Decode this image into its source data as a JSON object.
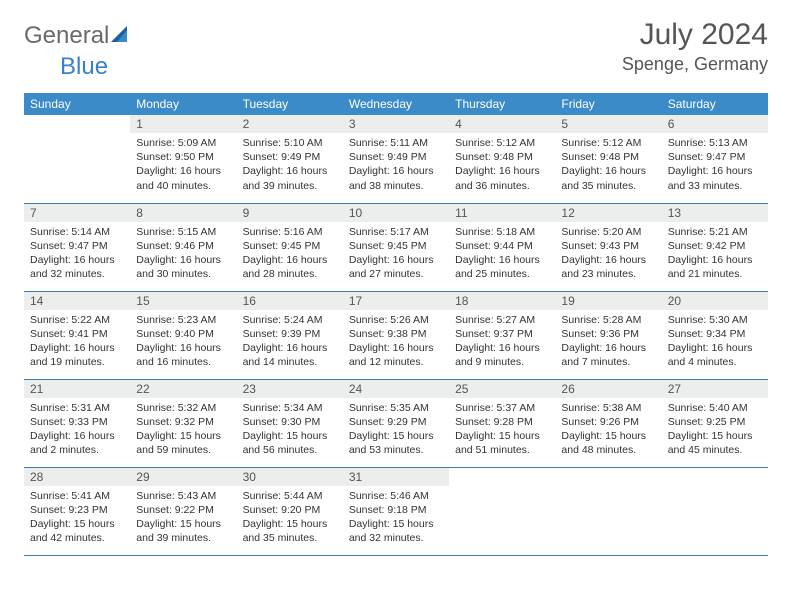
{
  "brand": {
    "part1": "General",
    "part2": "Blue"
  },
  "title": "July 2024",
  "location": "Spenge, Germany",
  "colors": {
    "header_bg": "#3b8bc9",
    "header_text": "#ffffff",
    "daynum_bg": "#eceded",
    "border": "#3b7fa5",
    "logo_gray": "#6a6a6a",
    "logo_blue": "#3b7fc4"
  },
  "weekdays": [
    "Sunday",
    "Monday",
    "Tuesday",
    "Wednesday",
    "Thursday",
    "Friday",
    "Saturday"
  ],
  "weeks": [
    [
      null,
      {
        "n": "1",
        "sr": "Sunrise: 5:09 AM",
        "ss": "Sunset: 9:50 PM",
        "dl": "Daylight: 16 hours and 40 minutes."
      },
      {
        "n": "2",
        "sr": "Sunrise: 5:10 AM",
        "ss": "Sunset: 9:49 PM",
        "dl": "Daylight: 16 hours and 39 minutes."
      },
      {
        "n": "3",
        "sr": "Sunrise: 5:11 AM",
        "ss": "Sunset: 9:49 PM",
        "dl": "Daylight: 16 hours and 38 minutes."
      },
      {
        "n": "4",
        "sr": "Sunrise: 5:12 AM",
        "ss": "Sunset: 9:48 PM",
        "dl": "Daylight: 16 hours and 36 minutes."
      },
      {
        "n": "5",
        "sr": "Sunrise: 5:12 AM",
        "ss": "Sunset: 9:48 PM",
        "dl": "Daylight: 16 hours and 35 minutes."
      },
      {
        "n": "6",
        "sr": "Sunrise: 5:13 AM",
        "ss": "Sunset: 9:47 PM",
        "dl": "Daylight: 16 hours and 33 minutes."
      }
    ],
    [
      {
        "n": "7",
        "sr": "Sunrise: 5:14 AM",
        "ss": "Sunset: 9:47 PM",
        "dl": "Daylight: 16 hours and 32 minutes."
      },
      {
        "n": "8",
        "sr": "Sunrise: 5:15 AM",
        "ss": "Sunset: 9:46 PM",
        "dl": "Daylight: 16 hours and 30 minutes."
      },
      {
        "n": "9",
        "sr": "Sunrise: 5:16 AM",
        "ss": "Sunset: 9:45 PM",
        "dl": "Daylight: 16 hours and 28 minutes."
      },
      {
        "n": "10",
        "sr": "Sunrise: 5:17 AM",
        "ss": "Sunset: 9:45 PM",
        "dl": "Daylight: 16 hours and 27 minutes."
      },
      {
        "n": "11",
        "sr": "Sunrise: 5:18 AM",
        "ss": "Sunset: 9:44 PM",
        "dl": "Daylight: 16 hours and 25 minutes."
      },
      {
        "n": "12",
        "sr": "Sunrise: 5:20 AM",
        "ss": "Sunset: 9:43 PM",
        "dl": "Daylight: 16 hours and 23 minutes."
      },
      {
        "n": "13",
        "sr": "Sunrise: 5:21 AM",
        "ss": "Sunset: 9:42 PM",
        "dl": "Daylight: 16 hours and 21 minutes."
      }
    ],
    [
      {
        "n": "14",
        "sr": "Sunrise: 5:22 AM",
        "ss": "Sunset: 9:41 PM",
        "dl": "Daylight: 16 hours and 19 minutes."
      },
      {
        "n": "15",
        "sr": "Sunrise: 5:23 AM",
        "ss": "Sunset: 9:40 PM",
        "dl": "Daylight: 16 hours and 16 minutes."
      },
      {
        "n": "16",
        "sr": "Sunrise: 5:24 AM",
        "ss": "Sunset: 9:39 PM",
        "dl": "Daylight: 16 hours and 14 minutes."
      },
      {
        "n": "17",
        "sr": "Sunrise: 5:26 AM",
        "ss": "Sunset: 9:38 PM",
        "dl": "Daylight: 16 hours and 12 minutes."
      },
      {
        "n": "18",
        "sr": "Sunrise: 5:27 AM",
        "ss": "Sunset: 9:37 PM",
        "dl": "Daylight: 16 hours and 9 minutes."
      },
      {
        "n": "19",
        "sr": "Sunrise: 5:28 AM",
        "ss": "Sunset: 9:36 PM",
        "dl": "Daylight: 16 hours and 7 minutes."
      },
      {
        "n": "20",
        "sr": "Sunrise: 5:30 AM",
        "ss": "Sunset: 9:34 PM",
        "dl": "Daylight: 16 hours and 4 minutes."
      }
    ],
    [
      {
        "n": "21",
        "sr": "Sunrise: 5:31 AM",
        "ss": "Sunset: 9:33 PM",
        "dl": "Daylight: 16 hours and 2 minutes."
      },
      {
        "n": "22",
        "sr": "Sunrise: 5:32 AM",
        "ss": "Sunset: 9:32 PM",
        "dl": "Daylight: 15 hours and 59 minutes."
      },
      {
        "n": "23",
        "sr": "Sunrise: 5:34 AM",
        "ss": "Sunset: 9:30 PM",
        "dl": "Daylight: 15 hours and 56 minutes."
      },
      {
        "n": "24",
        "sr": "Sunrise: 5:35 AM",
        "ss": "Sunset: 9:29 PM",
        "dl": "Daylight: 15 hours and 53 minutes."
      },
      {
        "n": "25",
        "sr": "Sunrise: 5:37 AM",
        "ss": "Sunset: 9:28 PM",
        "dl": "Daylight: 15 hours and 51 minutes."
      },
      {
        "n": "26",
        "sr": "Sunrise: 5:38 AM",
        "ss": "Sunset: 9:26 PM",
        "dl": "Daylight: 15 hours and 48 minutes."
      },
      {
        "n": "27",
        "sr": "Sunrise: 5:40 AM",
        "ss": "Sunset: 9:25 PM",
        "dl": "Daylight: 15 hours and 45 minutes."
      }
    ],
    [
      {
        "n": "28",
        "sr": "Sunrise: 5:41 AM",
        "ss": "Sunset: 9:23 PM",
        "dl": "Daylight: 15 hours and 42 minutes."
      },
      {
        "n": "29",
        "sr": "Sunrise: 5:43 AM",
        "ss": "Sunset: 9:22 PM",
        "dl": "Daylight: 15 hours and 39 minutes."
      },
      {
        "n": "30",
        "sr": "Sunrise: 5:44 AM",
        "ss": "Sunset: 9:20 PM",
        "dl": "Daylight: 15 hours and 35 minutes."
      },
      {
        "n": "31",
        "sr": "Sunrise: 5:46 AM",
        "ss": "Sunset: 9:18 PM",
        "dl": "Daylight: 15 hours and 32 minutes."
      },
      null,
      null,
      null
    ]
  ]
}
